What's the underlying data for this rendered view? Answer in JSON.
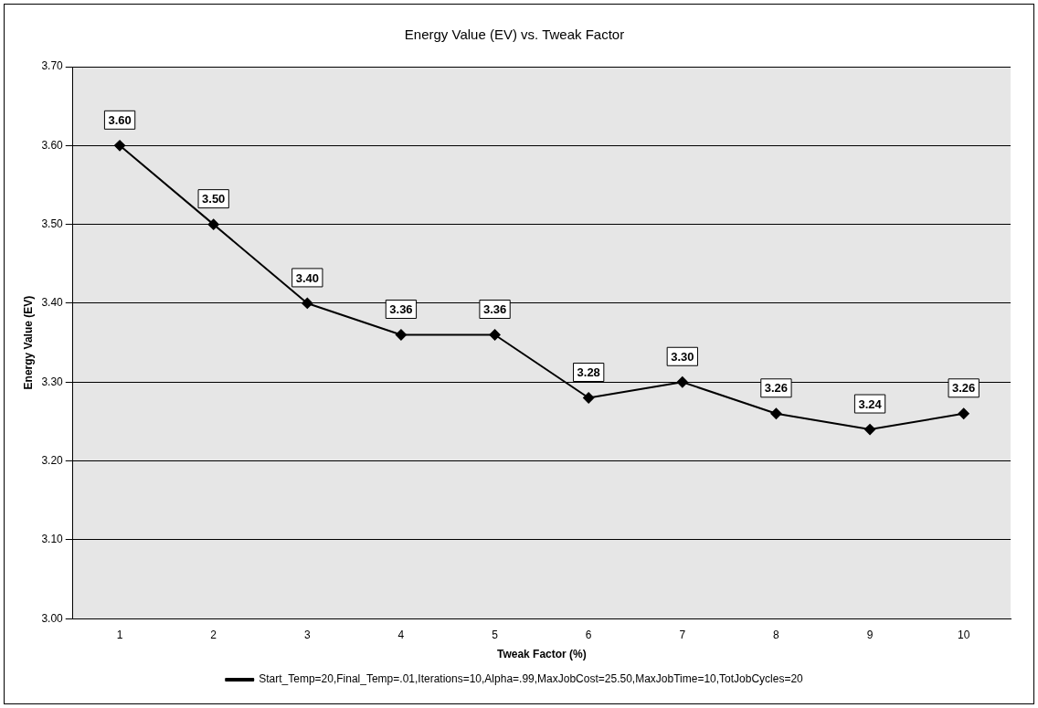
{
  "chart_data": {
    "type": "line",
    "title": "Energy Value (EV) vs. Tweak Factor",
    "xlabel": "Tweak Factor (%)",
    "ylabel": "Energy Value (EV)",
    "categories": [
      "1",
      "2",
      "3",
      "4",
      "5",
      "6",
      "7",
      "8",
      "9",
      "10"
    ],
    "series": [
      {
        "name": "Start_Temp=20,Final_Temp=.01,Iterations=10,Alpha=.99,MaxJobCost=25.50,MaxJobTime=10,TotJobCycles=20",
        "color": "#000000",
        "values": [
          3.6,
          3.5,
          3.4,
          3.36,
          3.36,
          3.28,
          3.3,
          3.26,
          3.24,
          3.26
        ],
        "value_labels": [
          "3.60",
          "3.50",
          "3.40",
          "3.36",
          "3.36",
          "3.28",
          "3.30",
          "3.26",
          "3.24",
          "3.26"
        ]
      }
    ],
    "ylim": [
      3.0,
      3.7
    ],
    "yticks": [
      {
        "value": 3.0,
        "label": "3.00"
      },
      {
        "value": 3.1,
        "label": "3.10"
      },
      {
        "value": 3.2,
        "label": "3.20"
      },
      {
        "value": 3.3,
        "label": "3.30"
      },
      {
        "value": 3.4,
        "label": "3.40"
      },
      {
        "value": 3.5,
        "label": "3.50"
      },
      {
        "value": 3.6,
        "label": "3.60"
      },
      {
        "value": 3.7,
        "label": "3.70"
      }
    ],
    "grid": "y",
    "legend": "bottom",
    "marker": "diamond",
    "line_style": "solid"
  }
}
